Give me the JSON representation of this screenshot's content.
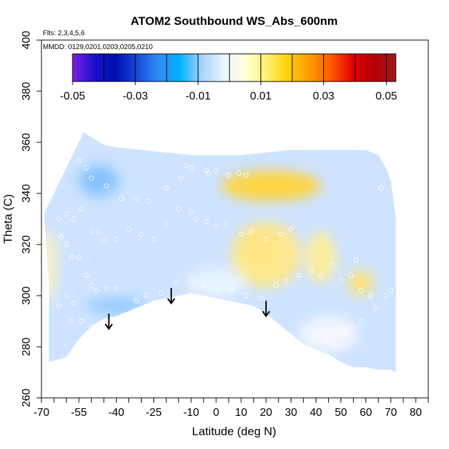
{
  "chart_data": {
    "type": "heatmap",
    "title": "ATOM2 Southbound WS_Abs_600nm",
    "notes": [
      "Flts: 2,3,4,5,6",
      "MMDD: 0129,0201,0203,0205,0210"
    ],
    "xlabel": "Latitude (deg N)",
    "ylabel": "Theta (C)",
    "xlim": [
      -70,
      85
    ],
    "ylim": [
      260,
      400
    ],
    "x_ticks": [
      "-70",
      "-55",
      "-40",
      "-25",
      "-10",
      "0",
      "10",
      "20",
      "30",
      "40",
      "50",
      "60",
      "70",
      "80"
    ],
    "x_tick_values": [
      -70,
      -55,
      -40,
      -25,
      -10,
      0,
      10,
      20,
      30,
      40,
      50,
      60,
      70,
      80
    ],
    "x_minor_ticks": [
      -65,
      -60,
      -50,
      -45,
      -35,
      -30,
      -20,
      -15,
      -5,
      5,
      15,
      25,
      35,
      45,
      55,
      65,
      75,
      85
    ],
    "y_ticks": [
      "260",
      "280",
      "300",
      "320",
      "340",
      "360",
      "380",
      "400"
    ],
    "y_tick_values": [
      260,
      280,
      300,
      320,
      340,
      360,
      380,
      400
    ],
    "colorbar": {
      "range": [
        -0.05,
        0.053
      ],
      "labels": [
        "-0.05",
        "-0.03",
        "-0.01",
        "0.01",
        "0.03",
        "0.05"
      ],
      "label_values": [
        -0.05,
        -0.03,
        -0.01,
        0.01,
        0.03,
        0.05
      ],
      "bin_edges": [
        -0.05,
        -0.04,
        -0.03,
        -0.02,
        -0.01,
        0,
        0.01,
        0.02,
        0.03,
        0.04,
        0.05
      ],
      "colors": [
        "#7b1fe0",
        "#1a0fd0",
        "#0010b0",
        "#1a4ad8",
        "#2f8cf5",
        "#00b4ff",
        "#a9d4ff",
        "#eaf4ff",
        "#ffffd9",
        "#fff176",
        "#ffd100",
        "#ff9b00",
        "#ff5a00",
        "#e00000",
        "#b5000a",
        "#9e1a1a"
      ]
    },
    "region": {
      "outline": [
        [
          -69,
          332
        ],
        [
          -68,
          320
        ],
        [
          -67,
          305
        ],
        [
          -67,
          274
        ],
        [
          -60,
          276
        ],
        [
          -55,
          283
        ],
        [
          -50,
          288
        ],
        [
          -45,
          291
        ],
        [
          -40,
          292
        ],
        [
          -35,
          294
        ],
        [
          -30,
          296
        ],
        [
          -25,
          298
        ],
        [
          -20,
          299
        ],
        [
          -15,
          300
        ],
        [
          -10,
          301
        ],
        [
          -5,
          300
        ],
        [
          0,
          299
        ],
        [
          5,
          298
        ],
        [
          10,
          297
        ],
        [
          15,
          296
        ],
        [
          20,
          293
        ],
        [
          25,
          289
        ],
        [
          30,
          285
        ],
        [
          35,
          281
        ],
        [
          40,
          279
        ],
        [
          45,
          277
        ],
        [
          50,
          274
        ],
        [
          55,
          272
        ],
        [
          60,
          272
        ],
        [
          65,
          271
        ],
        [
          70,
          271
        ],
        [
          72,
          270
        ],
        [
          72,
          330
        ],
        [
          70,
          345
        ],
        [
          68,
          350
        ],
        [
          65,
          355
        ],
        [
          60,
          357
        ],
        [
          55,
          357
        ],
        [
          40,
          357
        ],
        [
          30,
          357
        ],
        [
          20,
          356
        ],
        [
          10,
          355
        ],
        [
          0,
          355
        ],
        [
          -10,
          355
        ],
        [
          -20,
          356
        ],
        [
          -30,
          357
        ],
        [
          -40,
          358
        ],
        [
          -45,
          359
        ],
        [
          -50,
          362
        ],
        [
          -53,
          364
        ],
        [
          -58,
          354
        ],
        [
          -62,
          346
        ],
        [
          -66,
          338
        ]
      ],
      "base_color": "#cde3ff",
      "features": [
        {
          "name": "upper-right-high",
          "x": 22,
          "y": 343,
          "rx": 20,
          "ry": 6,
          "color": "#ffd43a"
        },
        {
          "name": "center-high",
          "x": 17,
          "y": 318,
          "rx": 7,
          "ry": 8,
          "color": "#ffbe2a"
        },
        {
          "name": "center-high-halo",
          "x": 20,
          "y": 316,
          "rx": 14,
          "ry": 13,
          "color": "#ffe88a"
        },
        {
          "name": "right-mid-high",
          "x": 42,
          "y": 315,
          "rx": 6,
          "ry": 10,
          "color": "#ffee9a"
        },
        {
          "name": "right-edge-high",
          "x": 58,
          "y": 305,
          "rx": 5,
          "ry": 5,
          "color": "#ffe070"
        },
        {
          "name": "upper-left-low",
          "x": -47,
          "y": 345,
          "rx": 8,
          "ry": 6,
          "color": "#7fc1ff"
        },
        {
          "name": "left-bottom-low",
          "x": -40,
          "y": 296,
          "rx": 12,
          "ry": 3,
          "color": "#8fc8ff"
        },
        {
          "name": "left-edge-high",
          "x": -67,
          "y": 312,
          "rx": 3,
          "ry": 14,
          "color": "#fff4b8"
        },
        {
          "name": "lower-mid-light",
          "x": 0,
          "y": 305,
          "rx": 12,
          "ry": 6,
          "color": "#e8f3ff"
        },
        {
          "name": "lower-right-light",
          "x": 45,
          "y": 285,
          "rx": 12,
          "ry": 7,
          "color": "#f4f8ff"
        }
      ]
    },
    "points": [
      [
        -55,
        353
      ],
      [
        -52,
        350
      ],
      [
        -50,
        346
      ],
      [
        -44,
        343
      ],
      [
        -38,
        338
      ],
      [
        -32,
        338
      ],
      [
        -27,
        337
      ],
      [
        -20,
        342
      ],
      [
        -14,
        346
      ],
      [
        -12,
        351
      ],
      [
        -10,
        350
      ],
      [
        -4,
        349
      ],
      [
        -3,
        348
      ],
      [
        0,
        349
      ],
      [
        5,
        347
      ],
      [
        9,
        348
      ],
      [
        12,
        347
      ],
      [
        -60,
        332
      ],
      [
        -57,
        330
      ],
      [
        -54,
        334
      ],
      [
        -50,
        325
      ],
      [
        -47,
        325
      ],
      [
        -45,
        322
      ],
      [
        -40,
        322
      ],
      [
        -35,
        326
      ],
      [
        -30,
        324
      ],
      [
        -25,
        322
      ],
      [
        -20,
        328
      ],
      [
        -15,
        334
      ],
      [
        -10,
        333
      ],
      [
        -8,
        330
      ],
      [
        -4,
        329
      ],
      [
        0,
        327
      ],
      [
        4,
        328
      ],
      [
        10,
        324
      ],
      [
        14,
        325
      ],
      [
        20,
        322
      ],
      [
        26,
        324
      ],
      [
        30,
        326
      ],
      [
        -63,
        330
      ],
      [
        -62,
        323
      ],
      [
        -60,
        320
      ],
      [
        -58,
        315
      ],
      [
        -55,
        315
      ],
      [
        -52,
        308
      ],
      [
        -50,
        304
      ],
      [
        -48,
        302
      ],
      [
        -44,
        303
      ],
      [
        -40,
        303
      ],
      [
        -32,
        298
      ],
      [
        -28,
        300
      ],
      [
        -22,
        301
      ],
      [
        -16,
        305
      ],
      [
        -10,
        306
      ],
      [
        -5,
        304
      ],
      [
        0,
        303
      ],
      [
        6,
        302
      ],
      [
        12,
        300
      ],
      [
        18,
        299
      ],
      [
        24,
        304
      ],
      [
        28,
        306
      ],
      [
        33,
        308
      ],
      [
        38,
        310
      ],
      [
        42,
        308
      ],
      [
        46,
        312
      ],
      [
        50,
        306
      ],
      [
        54,
        308
      ],
      [
        56,
        314
      ],
      [
        58,
        302
      ],
      [
        62,
        300
      ],
      [
        -58,
        290
      ],
      [
        -54,
        290
      ],
      [
        -50,
        288
      ],
      [
        -46,
        286
      ],
      [
        -42,
        286
      ],
      [
        40,
        284
      ],
      [
        44,
        282
      ],
      [
        48,
        280
      ],
      [
        52,
        286
      ],
      [
        58,
        290
      ],
      [
        64,
        295
      ],
      [
        68,
        300
      ],
      [
        70,
        302
      ],
      [
        -60,
        300
      ],
      [
        -57,
        297
      ],
      [
        -63,
        296
      ],
      [
        70,
        348
      ],
      [
        66,
        342
      ]
    ],
    "arrows": [
      {
        "x": -43,
        "y_top": 293,
        "y_tip": 287
      },
      {
        "x": -18,
        "y_top": 303,
        "y_tip": 297
      },
      {
        "x": 20,
        "y_top": 298,
        "y_tip": 292
      }
    ]
  }
}
